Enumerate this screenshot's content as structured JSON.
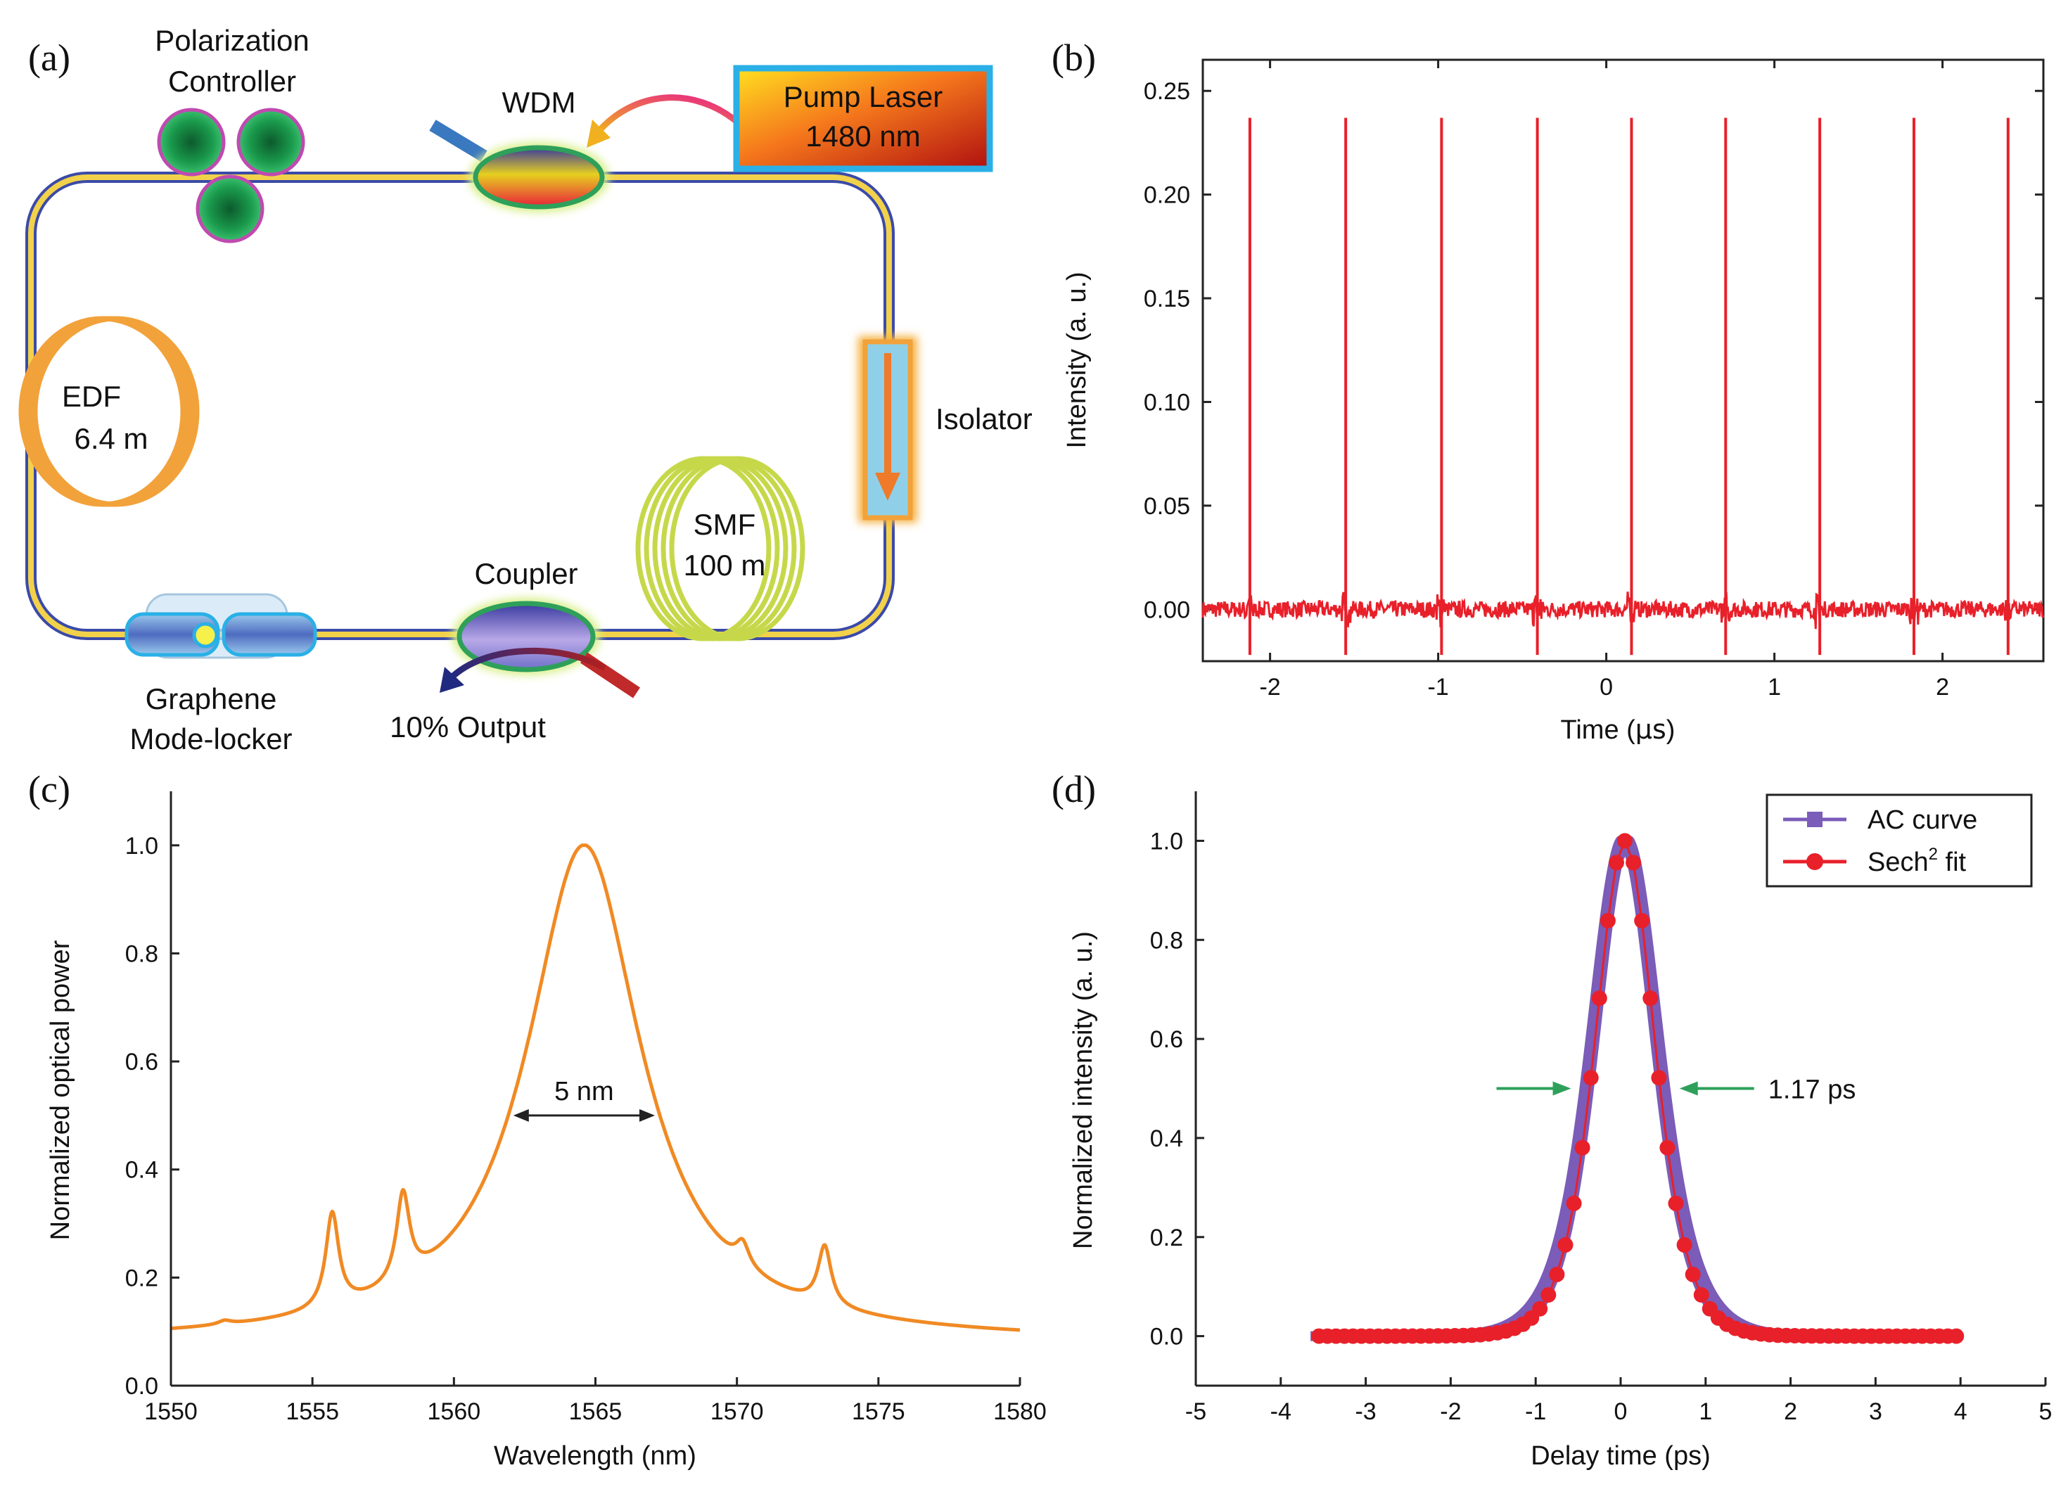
{
  "panels": {
    "a": {
      "letter": "(a)"
    },
    "b": {
      "letter": "(b)"
    },
    "c": {
      "letter": "(c)"
    },
    "d": {
      "letter": "(d)"
    }
  },
  "diagram": {
    "polarization_controller": {
      "line1": "Polarization",
      "line2": "Controller"
    },
    "wdm": "WDM",
    "pump": {
      "line1": "Pump Laser",
      "line2": "1480 nm"
    },
    "edf": {
      "line1": "EDF",
      "line2": "6.4 m"
    },
    "isolator": "Isolator",
    "smf": {
      "line1": "SMF",
      "line2": "100 m"
    },
    "coupler": "Coupler",
    "graphene": {
      "line1": "Graphene",
      "line2": "Mode-locker"
    },
    "output": "10% Output",
    "colors": {
      "fiber": "#f2d24a",
      "fiber_edge": "#3b4aa8",
      "pc": "#1a8f4a",
      "pc_edge": "#c04ab0",
      "edf": "#f2a23a",
      "smf": "#c6d84a",
      "isolator": "#8fd0e8",
      "arrow": "#ef7a2a"
    }
  },
  "chart_data": [
    {
      "panel": "b",
      "type": "line",
      "title": "",
      "xlabel_prefix": "Time (",
      "xlabel_unit": "μs",
      "xlabel_suffix": ")",
      "ylabel": "Intensity (a. u.)",
      "xlim": [
        -2.4,
        2.6
      ],
      "ylim": [
        -0.025,
        0.265
      ],
      "xticks": [
        -2,
        -1,
        0,
        1,
        2
      ],
      "xtick_labels": [
        "-2",
        "-1",
        "0",
        "1",
        "2"
      ],
      "yticks": [
        0.0,
        0.05,
        0.1,
        0.15,
        0.2,
        0.25
      ],
      "ytick_labels": [
        "0.00",
        "0.05",
        "0.10",
        "0.15",
        "0.20",
        "0.25"
      ],
      "pulse_times": [
        -2.12,
        -1.55,
        -0.98,
        -0.41,
        0.15,
        0.71,
        1.27,
        1.83,
        2.39
      ],
      "pulse_height": 0.237,
      "baseline_noise": 0.004,
      "color": "#e8202a"
    },
    {
      "panel": "c",
      "type": "line",
      "title": "",
      "xlabel": "Wavelength (nm)",
      "ylabel": "Normalized optical power",
      "xlim": [
        1550,
        1580
      ],
      "ylim": [
        0.0,
        1.1
      ],
      "xticks": [
        1550,
        1555,
        1560,
        1565,
        1570,
        1575,
        1580
      ],
      "xtick_labels": [
        "1550",
        "1555",
        "1560",
        "1565",
        "1570",
        "1575",
        "1580"
      ],
      "yticks": [
        0.0,
        0.2,
        0.4,
        0.6,
        0.8,
        1.0
      ],
      "ytick_labels": [
        "0.0",
        "0.2",
        "0.4",
        "0.6",
        "0.8",
        "1.0"
      ],
      "peak_wavelength": 1564.6,
      "baseline": 0.08,
      "sidebands": [
        {
          "x": 1551.9,
          "y": 0.12
        },
        {
          "x": 1553.4,
          "y": 0.12
        },
        {
          "x": 1555.7,
          "y": 0.32
        },
        {
          "x": 1558.2,
          "y": 0.36
        },
        {
          "x": 1570.2,
          "y": 0.27
        },
        {
          "x": 1573.1,
          "y": 0.26
        },
        {
          "x": 1575.1,
          "y": 0.11
        },
        {
          "x": 1576.9,
          "y": 0.105
        }
      ],
      "fwhm_label": "5 nm",
      "fwhm_span": [
        1562.1,
        1567.1
      ],
      "fwhm_level": 0.5,
      "color": "#f08a24"
    },
    {
      "panel": "d",
      "type": "scatter",
      "title": "",
      "xlabel": "Delay time (ps)",
      "ylabel": "Normalized intensity (a. u.)",
      "xlim": [
        -5,
        5
      ],
      "ylim": [
        -0.1,
        1.1
      ],
      "xticks": [
        -5,
        -4,
        -3,
        -2,
        -1,
        0,
        1,
        2,
        3,
        4,
        5
      ],
      "xtick_labels": [
        "-5",
        "-4",
        "-3",
        "-2",
        "-1",
        "0",
        "1",
        "2",
        "3",
        "4",
        "5"
      ],
      "yticks": [
        0.0,
        0.2,
        0.4,
        0.6,
        0.8,
        1.0
      ],
      "ytick_labels": [
        "0.0",
        "0.2",
        "0.4",
        "0.6",
        "0.8",
        "1.0"
      ],
      "series": [
        {
          "name": "AC curve",
          "color": "#7b5cb8",
          "x_range": [
            -3.65,
            3.65
          ]
        },
        {
          "name_main": "Sech",
          "name_sup": "2",
          "name_tail": " fit",
          "color": "#e8202a",
          "x_range": [
            -3.55,
            4.0
          ],
          "step": 0.1
        }
      ],
      "pulse_center": 0.05,
      "fwhm_label": "1.17 ps",
      "fwhm_level": 0.5,
      "arrow_color": "#2ea05a"
    }
  ]
}
